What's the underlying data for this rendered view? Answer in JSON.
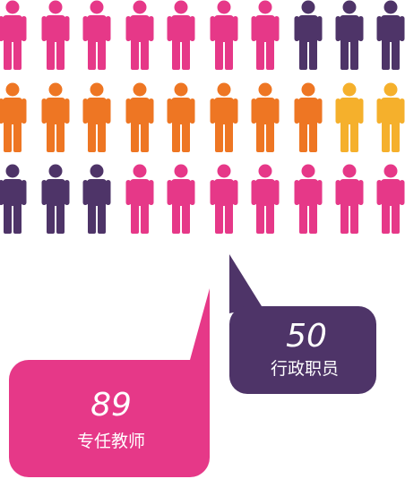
{
  "callouts": [
    {
      "value": 89,
      "label": "专任教师"
    },
    {
      "value": 50,
      "label": "行政职员"
    }
  ]
}
